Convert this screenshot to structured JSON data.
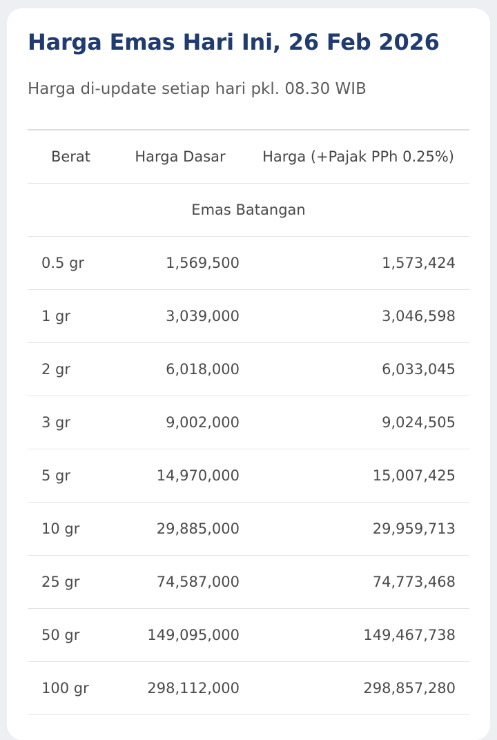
{
  "card": {
    "title": "Harga Emas Hari Ini, 26 Feb 2026",
    "subtitle": "Harga di-update setiap hari pkl. 08.30 WIB"
  },
  "table": {
    "headers": {
      "weight": "Berat",
      "base_price": "Harga Dasar",
      "taxed_price": "Harga (+Pajak PPh 0.25%)"
    },
    "section_label": "Emas Batangan",
    "rows": [
      {
        "weight": "0.5 gr",
        "base_price": "1,569,500",
        "taxed_price": "1,573,424"
      },
      {
        "weight": "1 gr",
        "base_price": "3,039,000",
        "taxed_price": "3,046,598"
      },
      {
        "weight": "2 gr",
        "base_price": "6,018,000",
        "taxed_price": "6,033,045"
      },
      {
        "weight": "3 gr",
        "base_price": "9,002,000",
        "taxed_price": "9,024,505"
      },
      {
        "weight": "5 gr",
        "base_price": "14,970,000",
        "taxed_price": "15,007,425"
      },
      {
        "weight": "10 gr",
        "base_price": "29,885,000",
        "taxed_price": "29,959,713"
      },
      {
        "weight": "25 gr",
        "base_price": "74,587,000",
        "taxed_price": "74,773,468"
      },
      {
        "weight": "50 gr",
        "base_price": "149,095,000",
        "taxed_price": "149,467,738"
      },
      {
        "weight": "100 gr",
        "base_price": "298,112,000",
        "taxed_price": "298,857,280"
      }
    ]
  },
  "colors": {
    "title": "#1f3b70",
    "text": "#4a4a4a",
    "divider": "#e3e3e3",
    "background": "#eeeff2",
    "card": "#ffffff"
  }
}
